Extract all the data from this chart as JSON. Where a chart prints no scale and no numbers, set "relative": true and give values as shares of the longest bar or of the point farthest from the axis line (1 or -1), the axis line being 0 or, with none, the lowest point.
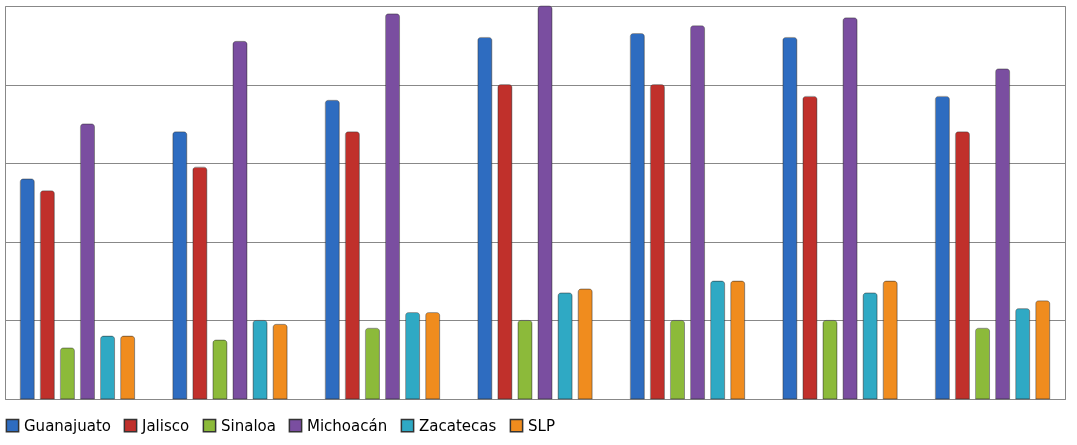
{
  "chart_data": {
    "type": "bar",
    "relative": true,
    "grid": "y",
    "legend": "bottom",
    "categories": [
      null,
      null,
      null,
      null,
      null,
      null,
      null
    ],
    "series": [
      {
        "name": "Guanajuato",
        "color": "#2e6cc0",
        "values": [
          0.56,
          0.68,
          0.76,
          0.92,
          0.93,
          0.92,
          0.77
        ]
      },
      {
        "name": "Jalisco",
        "color": "#c0302b",
        "values": [
          0.53,
          0.59,
          0.68,
          0.8,
          0.8,
          0.77,
          0.68
        ]
      },
      {
        "name": "Sinaloa",
        "color": "#8cba3a",
        "values": [
          0.13,
          0.15,
          0.18,
          0.2,
          0.2,
          0.2,
          0.18
        ]
      },
      {
        "name": "Michoacán",
        "color": "#7a4ea0",
        "values": [
          0.7,
          0.91,
          0.98,
          1.0,
          0.95,
          0.97,
          0.84
        ]
      },
      {
        "name": "Zacatecas",
        "color": "#2fa9c4",
        "values": [
          0.16,
          0.2,
          0.22,
          0.27,
          0.3,
          0.27,
          0.23
        ]
      },
      {
        "name": "SLP",
        "color": "#f08c1e",
        "values": [
          0.16,
          0.19,
          0.22,
          0.28,
          0.3,
          0.3,
          0.25
        ]
      }
    ]
  }
}
